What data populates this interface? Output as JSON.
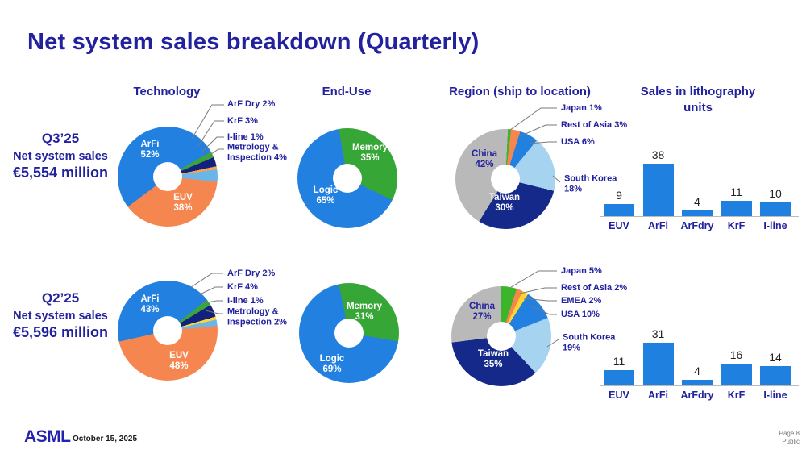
{
  "slide": {
    "title": "Net system sales breakdown (Quarterly)",
    "logo": "ASML",
    "date": "October 15, 2025",
    "page": "Page 8",
    "classification": "Public"
  },
  "headings": {
    "technology": "Technology",
    "end_use": "End-Use",
    "region": "Region (ship to location)",
    "units": "Sales in lithography\nunits"
  },
  "rows": [
    {
      "quarter": "Q3’25",
      "sales_label": "Net system sales",
      "sales_value": "€5,554 million",
      "technology": {
        "start": 60,
        "slices": [
          {
            "display": "ArF Dry 2%",
            "value": 2,
            "color": "#3ca43c"
          },
          {
            "display": "KrF 3%",
            "value": 3,
            "color": "#12217d"
          },
          {
            "display": "I-line 1%",
            "value": 1,
            "color": "#f5a54e"
          },
          {
            "display": "Metrology &\nInspection 4%",
            "value": 4,
            "color": "#6ab6e8"
          },
          {
            "name": "EUV",
            "pct": "38%",
            "value": 38,
            "color": "#f6864f"
          },
          {
            "name": "ArFi",
            "pct": "52%",
            "value": 52,
            "color": "#2280e0"
          }
        ]
      },
      "end_use": {
        "start": -10,
        "slices": [
          {
            "name": "Memory",
            "pct": "35%",
            "value": 35,
            "color": "#36a636"
          },
          {
            "name": "Logic",
            "pct": "65%",
            "value": 65,
            "color": "#2280e0"
          }
        ]
      },
      "region": {
        "start": 3,
        "slices": [
          {
            "display": "Japan 1%",
            "value": 1,
            "color": "#3cb42c"
          },
          {
            "display": "Rest of Asia 3%",
            "value": 3,
            "color": "#f6864f"
          },
          {
            "display": "USA 6%",
            "value": 6,
            "color": "#2280e0"
          },
          {
            "display": "South Korea\n18%",
            "value": 18,
            "color": "#a6d4f0"
          },
          {
            "name": "Taiwan",
            "pct": "30%",
            "value": 30,
            "color": "#15298a"
          },
          {
            "name": "China",
            "pct": "42%",
            "value": 42,
            "color": "#b9b9b9"
          }
        ]
      },
      "units": {
        "categories": [
          "EUV",
          "ArFi",
          "ArFdry",
          "KrF",
          "I-line"
        ],
        "values": [
          9,
          38,
          4,
          11,
          10
        ]
      }
    },
    {
      "quarter": "Q2’25",
      "sales_label": "Net system sales",
      "sales_value": "€5,596 million",
      "technology": {
        "start": 52,
        "slices": [
          {
            "display": "ArF Dry 2%",
            "value": 2,
            "color": "#3ca43c"
          },
          {
            "display": "KrF 4%",
            "value": 4,
            "color": "#12217d"
          },
          {
            "display": "I-line 1%",
            "value": 1,
            "color": "#ffd52e"
          },
          {
            "display": "Metrology &\nInspection 2%",
            "value": 2,
            "color": "#6ab6e8"
          },
          {
            "name": "EUV",
            "pct": "48%",
            "value": 48,
            "color": "#f6864f"
          },
          {
            "name": "ArFi",
            "pct": "43%",
            "value": 43,
            "color": "#2280e0"
          }
        ]
      },
      "end_use": {
        "start": -12,
        "slices": [
          {
            "name": "Memory",
            "pct": "31%",
            "value": 31,
            "color": "#36a636"
          },
          {
            "name": "Logic",
            "pct": "69%",
            "value": 69,
            "color": "#2280e0"
          }
        ]
      },
      "region": {
        "start": 0,
        "slices": [
          {
            "display": "Japan 5%",
            "value": 5,
            "color": "#3cb42c"
          },
          {
            "display": "Rest of Asia 2%",
            "value": 2,
            "color": "#f6864f"
          },
          {
            "display": "EMEA 2%",
            "value": 2,
            "color": "#ffd52e"
          },
          {
            "display": "USA 10%",
            "value": 10,
            "color": "#2280e0"
          },
          {
            "display": "South Korea\n19%",
            "value": 19,
            "color": "#a6d4f0"
          },
          {
            "name": "Taiwan",
            "pct": "35%",
            "value": 35,
            "color": "#15298a"
          },
          {
            "name": "China",
            "pct": "27%",
            "value": 27,
            "color": "#b9b9b9"
          }
        ]
      },
      "units": {
        "categories": [
          "EUV",
          "ArFi",
          "ArFdry",
          "KrF",
          "I-line"
        ],
        "values": [
          11,
          31,
          4,
          16,
          14
        ]
      }
    }
  ],
  "chart_data": [
    {
      "id": "q3-technology",
      "type": "pie",
      "title": "Technology",
      "quarter": "Q3’25",
      "labels": [
        "ArFi",
        "EUV",
        "Metrology & Inspection",
        "KrF",
        "ArF Dry",
        "I-line"
      ],
      "values": [
        52,
        38,
        4,
        3,
        2,
        1
      ],
      "unit": "%"
    },
    {
      "id": "q3-end-use",
      "type": "pie",
      "title": "End-Use",
      "quarter": "Q3’25",
      "labels": [
        "Logic",
        "Memory"
      ],
      "values": [
        65,
        35
      ],
      "unit": "%"
    },
    {
      "id": "q3-region",
      "type": "pie",
      "title": "Region (ship to location)",
      "quarter": "Q3’25",
      "labels": [
        "China",
        "Taiwan",
        "South Korea",
        "USA",
        "Rest of Asia",
        "Japan"
      ],
      "values": [
        42,
        30,
        18,
        6,
        3,
        1
      ],
      "unit": "%"
    },
    {
      "id": "q3-units",
      "type": "bar",
      "title": "Sales in lithography units",
      "quarter": "Q3’25",
      "categories": [
        "EUV",
        "ArFi",
        "ArFdry",
        "KrF",
        "I-line"
      ],
      "values": [
        9,
        38,
        4,
        11,
        10
      ],
      "ylim": [
        0,
        40
      ],
      "grid": false,
      "bar_color": "#1f80e0"
    },
    {
      "id": "q2-technology",
      "type": "pie",
      "title": "Technology",
      "quarter": "Q2’25",
      "labels": [
        "EUV",
        "ArFi",
        "KrF",
        "ArF Dry",
        "Metrology & Inspection",
        "I-line"
      ],
      "values": [
        48,
        43,
        4,
        2,
        2,
        1
      ],
      "unit": "%"
    },
    {
      "id": "q2-end-use",
      "type": "pie",
      "title": "End-Use",
      "quarter": "Q2’25",
      "labels": [
        "Logic",
        "Memory"
      ],
      "values": [
        69,
        31
      ],
      "unit": "%"
    },
    {
      "id": "q2-region",
      "type": "pie",
      "title": "Region (ship to location)",
      "quarter": "Q2’25",
      "labels": [
        "Taiwan",
        "China",
        "South Korea",
        "USA",
        "Japan",
        "Rest of Asia",
        "EMEA"
      ],
      "values": [
        35,
        27,
        19,
        10,
        5,
        2,
        2
      ],
      "unit": "%"
    },
    {
      "id": "q2-units",
      "type": "bar",
      "title": "Sales in lithography units",
      "quarter": "Q2’25",
      "categories": [
        "EUV",
        "ArFi",
        "ArFdry",
        "KrF",
        "I-line"
      ],
      "values": [
        11,
        31,
        4,
        16,
        14
      ],
      "ylim": [
        0,
        40
      ],
      "grid": false,
      "bar_color": "#1f80e0"
    }
  ]
}
